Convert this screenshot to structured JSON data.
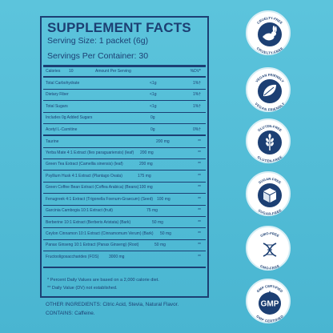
{
  "facts": {
    "title": "SUPPLEMENT FACTS",
    "serving_size": "Serving Size: 1 packet (6g)",
    "servings_per_container": "Servings Per Container: 30",
    "header": {
      "calories": "Calories",
      "calories_value": "10",
      "amount_per_serving": "Amount Per Serving",
      "dv": "%DV*"
    },
    "rows": [
      {
        "name": "Total Carbohydrate",
        "amount": "<1g",
        "dv": "1%†"
      },
      {
        "name": "Dietary Fiber",
        "amount": "<1g",
        "dv": "1%†"
      },
      {
        "name": "Total Sugars",
        "amount": "<1g",
        "dv": "1%†"
      },
      {
        "name": "Includes 0g Added Sugars",
        "amount": "0g",
        "dv": ""
      },
      {
        "name": "Acetyl L-Carnitine",
        "amount": "0g",
        "dv": "0%†"
      },
      {
        "name": "Taurine",
        "amount": "200 mg",
        "dv": "**"
      },
      {
        "name": "Yerba Mate 4:1 Extract (Ilex paraguariensis) (leaf)",
        "amount": "200 mg",
        "dv": "**"
      },
      {
        "name": "Green Tea Extract (Camellia sinensis) (leaf)",
        "amount": "200 mg",
        "dv": "**"
      },
      {
        "name": "Psyllium Husk 4:1 Extract (Plantago Ovata)",
        "amount": "175 mg",
        "dv": "**"
      },
      {
        "name": "Green Coffee Bean Extract (Coffea Arabica) (Beans)",
        "amount": "100 mg",
        "dv": "**"
      },
      {
        "name": "Fenugreek 4:1 Extract (Trigonella Foenum-Graecum) (Seed)",
        "amount": "100 mg",
        "dv": "**"
      },
      {
        "name": "Garcinia Cambogia 10:1 Extract (fruit)",
        "amount": "75 mg",
        "dv": "**"
      },
      {
        "name": "Berberine 10:1 Extract (Berberis Aristata) (Bark)",
        "amount": "50 mg",
        "dv": "**"
      },
      {
        "name": "Ceylon Cinnamon 10:1 Extract (Cinnamomum Verum) (Bark)",
        "amount": "50 mg",
        "dv": "**"
      },
      {
        "name": "Panax Ginseng 10:1 Extract (Panax Ginseng) (Root)",
        "amount": "50 mg",
        "dv": "**"
      },
      {
        "name": "Fructooligosaccharides (FOS)",
        "amount": "3000 mg",
        "dv": "**"
      }
    ],
    "footnote_1": "* Percent Daily Values are based on a 2,000 calorie diet.",
    "footnote_2": "** Daily Value (DV) not established."
  },
  "other_ingredients": "OTHER INGREDIENTS: Citric Acid, Stevia, Natural Flavor.",
  "contains": "CONTAINS: Caffeine.",
  "badges": [
    {
      "icon": "rabbit-icon",
      "top_text": "CRUELTY-FREE",
      "bottom_text": "CRUELTY-FREE"
    },
    {
      "icon": "leaf-icon",
      "top_text": "VEGAN FRIENDLY",
      "bottom_text": "VEGAN FRIENDLY"
    },
    {
      "icon": "wheat-icon",
      "top_text": "GLUTEN-FREE",
      "bottom_text": "GLUTEN-FREE"
    },
    {
      "icon": "sugar-cube-icon",
      "top_text": "SUGAR-FREE",
      "bottom_text": "SUGAR-FREE"
    },
    {
      "icon": "dna-icon",
      "top_text": "GMO-FREE",
      "bottom_text": "GMO-FREE"
    },
    {
      "icon": "gmp-shield-icon",
      "top_text": "GMP CERTIFIED",
      "bottom_text": "GMP CERTIFIED",
      "center_text": "GMP"
    }
  ],
  "colors": {
    "background": "#52bdd6",
    "ink": "#1c3f73",
    "badge": "#ffffff"
  }
}
